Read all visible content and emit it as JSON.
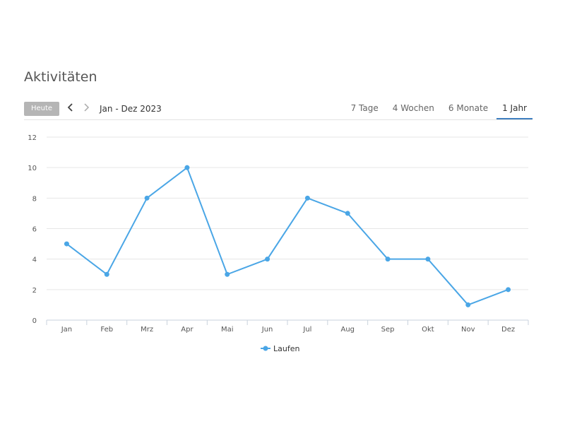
{
  "page": {
    "title": "Aktivitäten"
  },
  "toolbar": {
    "today_label": "Heute",
    "prev_icon": "chevron-left-icon",
    "next_icon": "chevron-right-icon",
    "date_range": "Jan - Dez 2023",
    "tabs": [
      {
        "label": "7 Tage",
        "active": false
      },
      {
        "label": "4 Wochen",
        "active": false
      },
      {
        "label": "6 Monate",
        "active": false
      },
      {
        "label": "1 Jahr",
        "active": true
      }
    ]
  },
  "colors": {
    "series": "#4aa6e6",
    "tab_active_underline": "#3f7fc0",
    "today_button_bg": "#b5b5b5"
  },
  "chart_data": {
    "type": "line",
    "categories": [
      "Jan",
      "Feb",
      "Mrz",
      "Apr",
      "Mai",
      "Jun",
      "Jul",
      "Aug",
      "Sep",
      "Okt",
      "Nov",
      "Dez"
    ],
    "series": [
      {
        "name": "Laufen",
        "values": [
          5,
          3,
          8,
          10,
          3,
          4,
          8,
          7,
          4,
          4,
          1,
          2
        ]
      }
    ],
    "ylim": [
      0,
      12
    ],
    "yticks": [
      "0",
      "2",
      "4",
      "6",
      "8",
      "10",
      "12"
    ],
    "grid": true,
    "legend": "bottom-center"
  }
}
